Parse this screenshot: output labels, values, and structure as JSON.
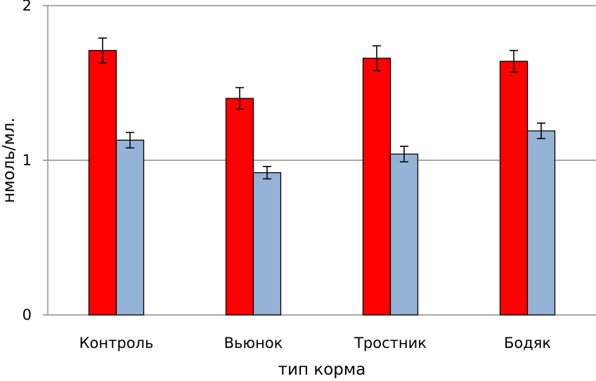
{
  "chart_data": {
    "type": "bar",
    "title": "",
    "xlabel": "тип корма",
    "ylabel": "нмоль/мл.",
    "categories": [
      "Контроль",
      "Вьюнок",
      "Тростник",
      "Бодяк"
    ],
    "ylim": [
      0,
      2
    ],
    "yticks": [
      0,
      1,
      2
    ],
    "grid": true,
    "legend": "none",
    "series": [
      {
        "color": "#ff0000",
        "values": [
          1.71,
          1.4,
          1.66,
          1.64
        ],
        "errors": [
          0.08,
          0.07,
          0.08,
          0.07
        ]
      },
      {
        "color": "#95b3d7",
        "values": [
          1.13,
          0.92,
          1.04,
          1.19
        ],
        "errors": [
          0.05,
          0.04,
          0.05,
          0.05
        ]
      }
    ]
  }
}
